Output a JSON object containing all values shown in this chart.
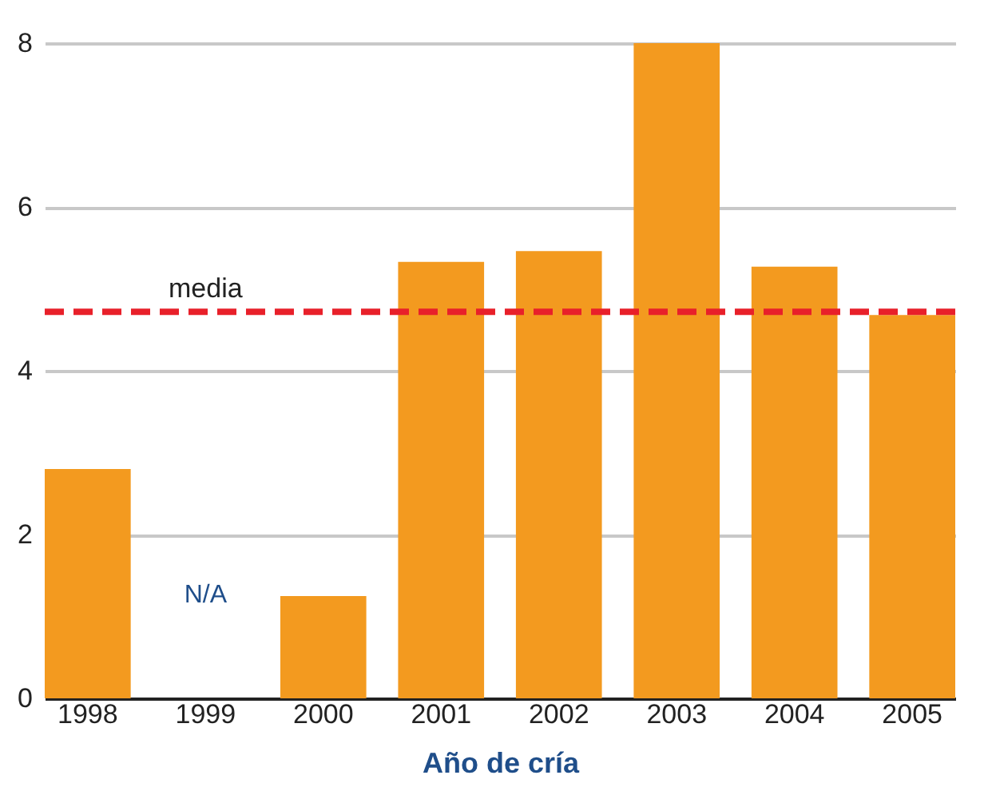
{
  "chart_data": {
    "type": "bar",
    "xlabel": "Año de cría",
    "categories": [
      "1998",
      "1999",
      "2000",
      "2001",
      "2002",
      "2003",
      "2004",
      "2005"
    ],
    "values": [
      2.8,
      null,
      1.25,
      5.33,
      5.46,
      8,
      5.27,
      4.68
    ],
    "color": "#f39a1f",
    "ylim": [
      0,
      8
    ],
    "yticks": [
      0,
      2,
      4,
      6,
      8
    ],
    "grid": "y",
    "ref_lines": [
      {
        "axis": "y",
        "value": 4.72,
        "label": "media",
        "color": "#e8202a",
        "line_style": "dashed"
      }
    ],
    "annotations": [
      "N/A"
    ]
  }
}
